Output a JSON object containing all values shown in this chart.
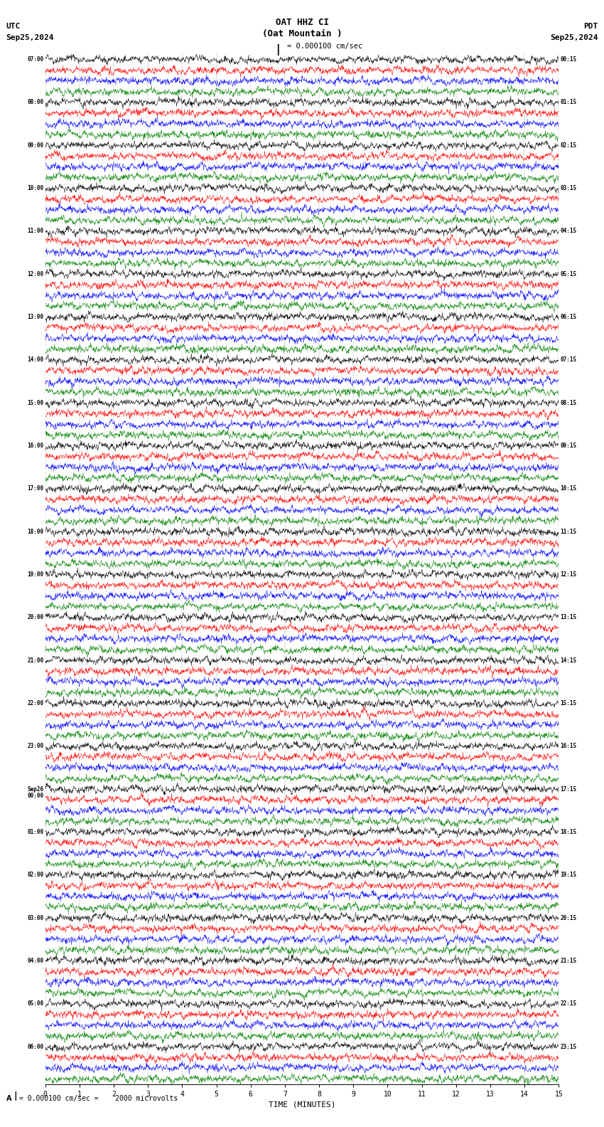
{
  "title_line1": "OAT HHZ CI",
  "title_line2": "(Oat Mountain )",
  "scale_text": "= 0.000100 cm/sec",
  "bottom_scale_text": "= 0.000100 cm/sec =    2000 microvolts",
  "utc_label": "UTC",
  "pdt_label": "PDT",
  "date_left": "Sep25,2024",
  "date_right": "Sep25,2024",
  "xlabel": "TIME (MINUTES)",
  "left_times": [
    "07:00",
    "08:00",
    "09:00",
    "10:00",
    "11:00",
    "12:00",
    "13:00",
    "14:00",
    "15:00",
    "16:00",
    "17:00",
    "18:00",
    "19:00",
    "20:00",
    "21:00",
    "22:00",
    "23:00",
    "Sep26\n00:00",
    "01:00",
    "02:00",
    "03:00",
    "04:00",
    "05:00",
    "06:00"
  ],
  "right_times": [
    "00:15",
    "01:15",
    "02:15",
    "03:15",
    "04:15",
    "05:15",
    "06:15",
    "07:15",
    "08:15",
    "09:15",
    "10:15",
    "11:15",
    "12:15",
    "13:15",
    "14:15",
    "15:15",
    "16:15",
    "17:15",
    "18:15",
    "19:15",
    "20:15",
    "21:15",
    "22:15",
    "23:15"
  ],
  "num_rows": 24,
  "traces_per_row": 4,
  "colors": [
    "black",
    "red",
    "blue",
    "green"
  ],
  "bg_color": "white",
  "fig_width": 8.5,
  "fig_height": 15.84,
  "dpi": 100,
  "noise_seed": 42,
  "xticks": [
    0,
    1,
    2,
    3,
    4,
    5,
    6,
    7,
    8,
    9,
    10,
    11,
    12,
    13,
    14,
    15
  ],
  "xmin": 0,
  "xmax": 15,
  "grid_minutes": [
    0,
    1,
    2,
    3,
    4,
    5,
    6,
    7,
    8,
    9,
    10,
    11,
    12,
    13,
    14,
    15
  ]
}
